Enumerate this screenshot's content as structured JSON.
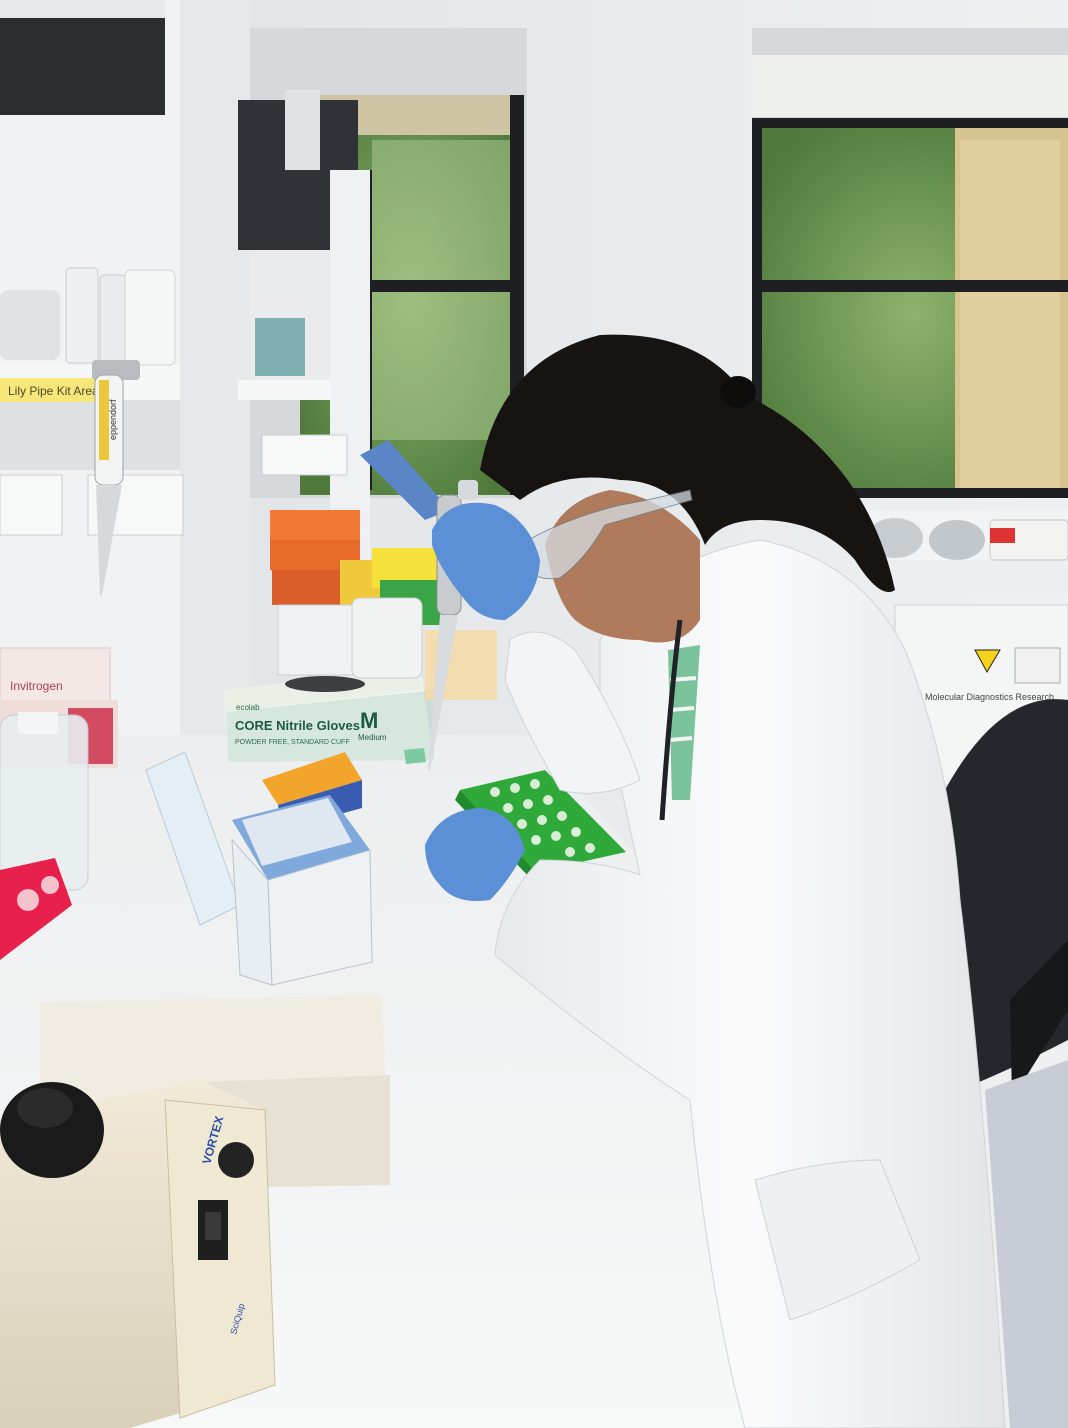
{
  "photo": {
    "glove_box": {
      "brand": "ecolab",
      "product": "CORE Nitrile Gloves",
      "subtitle": "POWDER FREE, STANDARD CUFF",
      "size_letter": "M",
      "size_word": "Medium"
    },
    "pipette_brand": "eppendorf",
    "shelf_label": "Lily Pipe Kit Area",
    "tissue_brand": "Invitrogen",
    "vortex_brand": "VORTEX",
    "vortex_model": "SciQuip",
    "notice_text": "Molecular Diagnostics Research",
    "colors": {
      "lab_coat": "#f4f5f6",
      "gloves": "#5b8fd6",
      "tube_rack": "#2faa3a",
      "tip_rack_orange": "#f2a52a",
      "rack_pink": "#e8204c",
      "bench": "#f3f4f5",
      "foliage": "#6f9a52"
    }
  }
}
